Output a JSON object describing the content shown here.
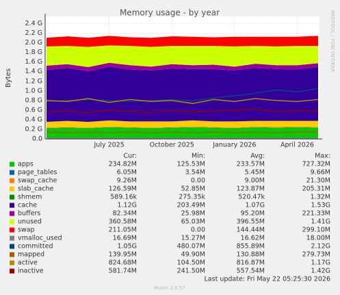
{
  "chart_data": {
    "type": "area",
    "title": "Memory usage - by year",
    "y_label": "Bytes",
    "side_note": "RRDTOOL / TOBI OETIKER",
    "categories": [
      null,
      null,
      null,
      "July 2025",
      null,
      null,
      "October 2025",
      null,
      null,
      "January 2026",
      null,
      null,
      "April 2026",
      null
    ],
    "ylim": [
      0,
      2.55
    ],
    "yticks": [
      {
        "value": 0,
        "label": "0.0"
      },
      {
        "value": 0.2,
        "label": "0.2 G"
      },
      {
        "value": 0.4,
        "label": "0.4 G"
      },
      {
        "value": 0.6,
        "label": "0.6 G"
      },
      {
        "value": 0.8,
        "label": "0.8 G"
      },
      {
        "value": 1.0,
        "label": "1.0 G"
      },
      {
        "value": 1.2,
        "label": "1.2 G"
      },
      {
        "value": 1.4,
        "label": "1.4 G"
      },
      {
        "value": 1.6,
        "label": "1.6 G"
      },
      {
        "value": 1.8,
        "label": "1.8 G"
      },
      {
        "value": 2.0,
        "label": "2.0 G"
      },
      {
        "value": 2.2,
        "label": "2.2 G"
      },
      {
        "value": 2.4,
        "label": "2.4 G"
      }
    ],
    "grid": true,
    "stat_headers": [
      "Cur:",
      "Min:",
      "Avg:",
      "Max:"
    ],
    "series": [
      {
        "name": "apps",
        "color": "#00cc00",
        "style": "area",
        "values": [
          0.22,
          0.23,
          0.22,
          0.24,
          0.23,
          0.22,
          0.23,
          0.24,
          0.23,
          0.22,
          0.24,
          0.23,
          0.24,
          0.23
        ],
        "stats": [
          "234.82M",
          "125.53M",
          "233.57M",
          "727.32M"
        ]
      },
      {
        "name": "page_tables",
        "color": "#0066b3",
        "style": "area",
        "values": [
          0.006,
          0.006,
          0.006,
          0.006,
          0.006,
          0.006,
          0.006,
          0.006,
          0.006,
          0.006,
          0.006,
          0.006,
          0.006,
          0.006
        ],
        "stats": [
          "6.05M",
          "3.54M",
          "5.45M",
          "9.66M"
        ]
      },
      {
        "name": "swap_cache",
        "color": "#ff8000",
        "style": "area",
        "values": [
          0.009,
          0.009,
          0.009,
          0.009,
          0.009,
          0.009,
          0.009,
          0.009,
          0.009,
          0.009,
          0.009,
          0.009,
          0.009,
          0.009
        ],
        "stats": [
          "9.26M",
          "0.00",
          "9.00M",
          "21.30M"
        ]
      },
      {
        "name": "slab_cache",
        "color": "#ffcc00",
        "style": "area",
        "values": [
          0.12,
          0.13,
          0.12,
          0.13,
          0.12,
          0.13,
          0.12,
          0.13,
          0.12,
          0.13,
          0.12,
          0.13,
          0.12,
          0.13
        ],
        "stats": [
          "126.59M",
          "52.85M",
          "123.87M",
          "205.31M"
        ]
      },
      {
        "name": "shmem",
        "color": "#008f00",
        "style": "area",
        "values": [
          0.0006,
          0.0006,
          0.0006,
          0.0006,
          0.0006,
          0.0006,
          0.0006,
          0.0006,
          0.0006,
          0.0006,
          0.0006,
          0.0006,
          0.0006,
          0.0006
        ],
        "stats": [
          "589.16k",
          "275.35k",
          "520.47k",
          "1.32M"
        ]
      },
      {
        "name": "cache",
        "color": "#330099",
        "style": "area",
        "values": [
          1.08,
          1.1,
          1.05,
          1.12,
          1.08,
          1.06,
          1.1,
          1.07,
          1.09,
          1.06,
          1.1,
          1.08,
          1.07,
          1.12
        ],
        "stats": [
          "1.12G",
          "203.49M",
          "1.07G",
          "1.53G"
        ]
      },
      {
        "name": "buffers",
        "color": "#990099",
        "style": "area",
        "values": [
          0.09,
          0.08,
          0.09,
          0.08,
          0.09,
          0.08,
          0.09,
          0.08,
          0.09,
          0.08,
          0.09,
          0.08,
          0.09,
          0.08
        ],
        "stats": [
          "82.34M",
          "25.98M",
          "95.20M",
          "221.33M"
        ]
      },
      {
        "name": "unused",
        "color": "#ccff00",
        "style": "area",
        "values": [
          0.4,
          0.38,
          0.42,
          0.36,
          0.4,
          0.41,
          0.38,
          0.4,
          0.39,
          0.42,
          0.37,
          0.39,
          0.4,
          0.36
        ],
        "stats": [
          "360.58M",
          "65.03M",
          "396.55M",
          "1.41G"
        ]
      },
      {
        "name": "swap",
        "color": "#ff0000",
        "style": "area",
        "values": [
          0.18,
          0.2,
          0.19,
          0.2,
          0.18,
          0.19,
          0.2,
          0.19,
          0.18,
          0.2,
          0.19,
          0.2,
          0.19,
          0.21
        ],
        "stats": [
          "211.05M",
          "0.00",
          "144.44M",
          "299.10M"
        ]
      },
      {
        "name": "vmalloc_used",
        "color": "#808080",
        "style": "line",
        "values": [
          0.017,
          0.017,
          0.017,
          0.017,
          0.017,
          0.017,
          0.017,
          0.017,
          0.017,
          0.017,
          0.017,
          0.017,
          0.017,
          0.017
        ],
        "stats": [
          "16.69M",
          "15.27M",
          "16.62M",
          "18.00M"
        ]
      },
      {
        "name": "committed",
        "color": "#00487d",
        "style": "line",
        "values": [
          0.78,
          0.8,
          0.82,
          0.8,
          0.78,
          0.8,
          0.82,
          0.8,
          0.85,
          0.9,
          0.95,
          1.02,
          0.98,
          1.05
        ],
        "stats": [
          "1.05G",
          "480.07M",
          "855.89M",
          "2.12G"
        ]
      },
      {
        "name": "mapped",
        "color": "#b35a00",
        "style": "line",
        "values": [
          0.14,
          0.13,
          0.14,
          0.13,
          0.14,
          0.13,
          0.14,
          0.13,
          0.14,
          0.13,
          0.14,
          0.13,
          0.14,
          0.14
        ],
        "stats": [
          "139.95M",
          "49.90M",
          "130.88M",
          "279.73M"
        ]
      },
      {
        "name": "active",
        "color": "#b38f00",
        "style": "line",
        "values": [
          0.8,
          0.78,
          0.84,
          0.76,
          0.82,
          0.78,
          0.8,
          0.74,
          0.82,
          0.78,
          0.84,
          0.8,
          0.78,
          0.82
        ],
        "stats": [
          "824.68M",
          "104.50M",
          "816.87M",
          "1.17G"
        ]
      },
      {
        "name": "inactive",
        "color": "#990000",
        "style": "line",
        "values": [
          0.56,
          0.58,
          0.55,
          0.6,
          0.57,
          0.55,
          0.59,
          0.56,
          0.58,
          0.6,
          0.62,
          0.57,
          0.59,
          0.58
        ],
        "stats": [
          "581.74M",
          "241.50M",
          "557.54M",
          "1.42G"
        ]
      }
    ],
    "last_update": "Last update: Fri May 22 05:25:30 2026",
    "footer": "Munin 2.0.57"
  }
}
